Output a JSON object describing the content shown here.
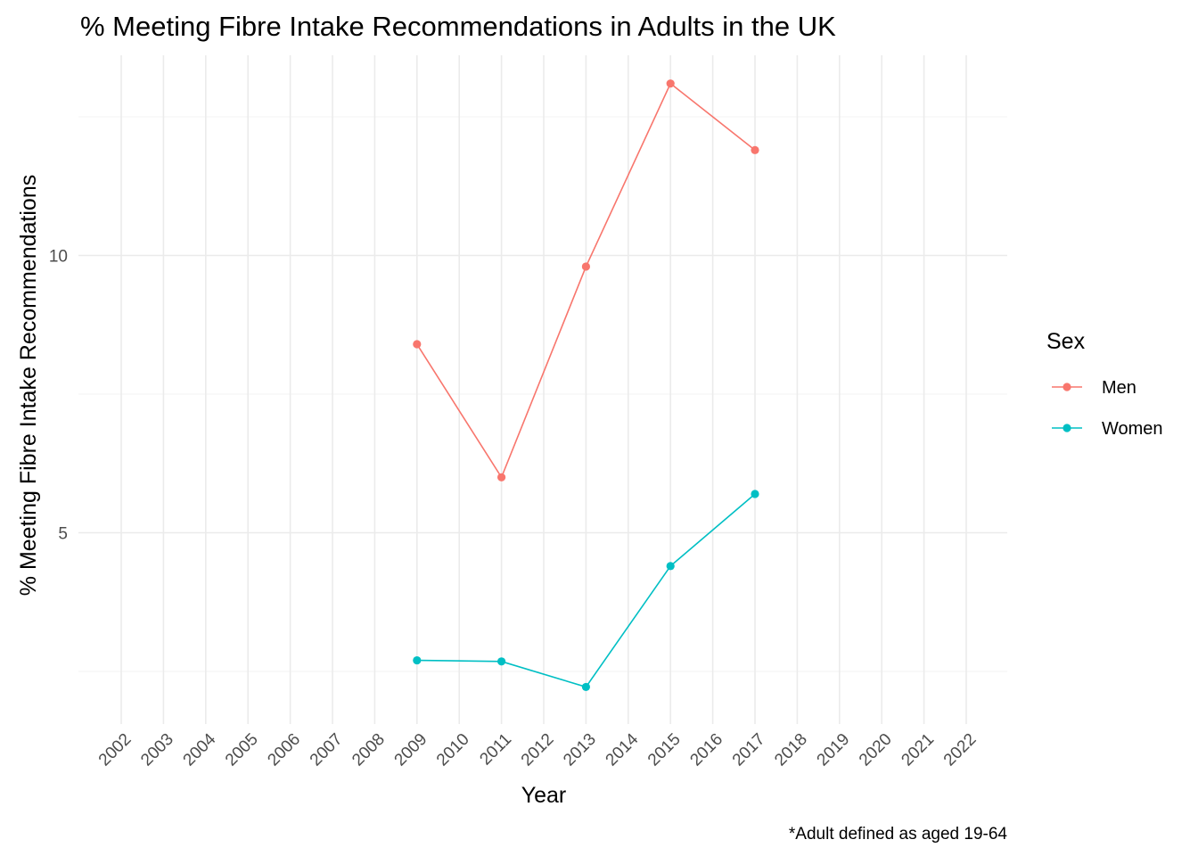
{
  "chart_data": {
    "type": "line",
    "title": "% Meeting Fibre Intake Recommendations in Adults in the UK",
    "xlabel": "Year",
    "ylabel": "% Meeting Fibre Intake Recommendations",
    "caption": "*Adult defined as aged 19-64",
    "x_ticks": [
      "2002",
      "2003",
      "2004",
      "2005",
      "2006",
      "2007",
      "2008",
      "2009",
      "2010",
      "2011",
      "2012",
      "2013",
      "2014",
      "2015",
      "2016",
      "2017",
      "2018",
      "2019",
      "2020",
      "2021",
      "2022"
    ],
    "xlim": [
      2002,
      2022
    ],
    "y_ticks": [
      5,
      10
    ],
    "ylim": [
      1.3,
      13.9
    ],
    "grid": true,
    "legend": {
      "title": "Sex",
      "position": "right"
    },
    "series": [
      {
        "name": "Men",
        "color": "#F8766D",
        "x": [
          2009,
          2011,
          2013,
          2015,
          2017
        ],
        "y": [
          8.4,
          6.0,
          9.8,
          13.1,
          11.9
        ]
      },
      {
        "name": "Women",
        "color": "#00BFC4",
        "x": [
          2009,
          2011,
          2013,
          2015,
          2017
        ],
        "y": [
          2.7,
          2.68,
          2.22,
          4.4,
          5.7
        ]
      }
    ]
  }
}
